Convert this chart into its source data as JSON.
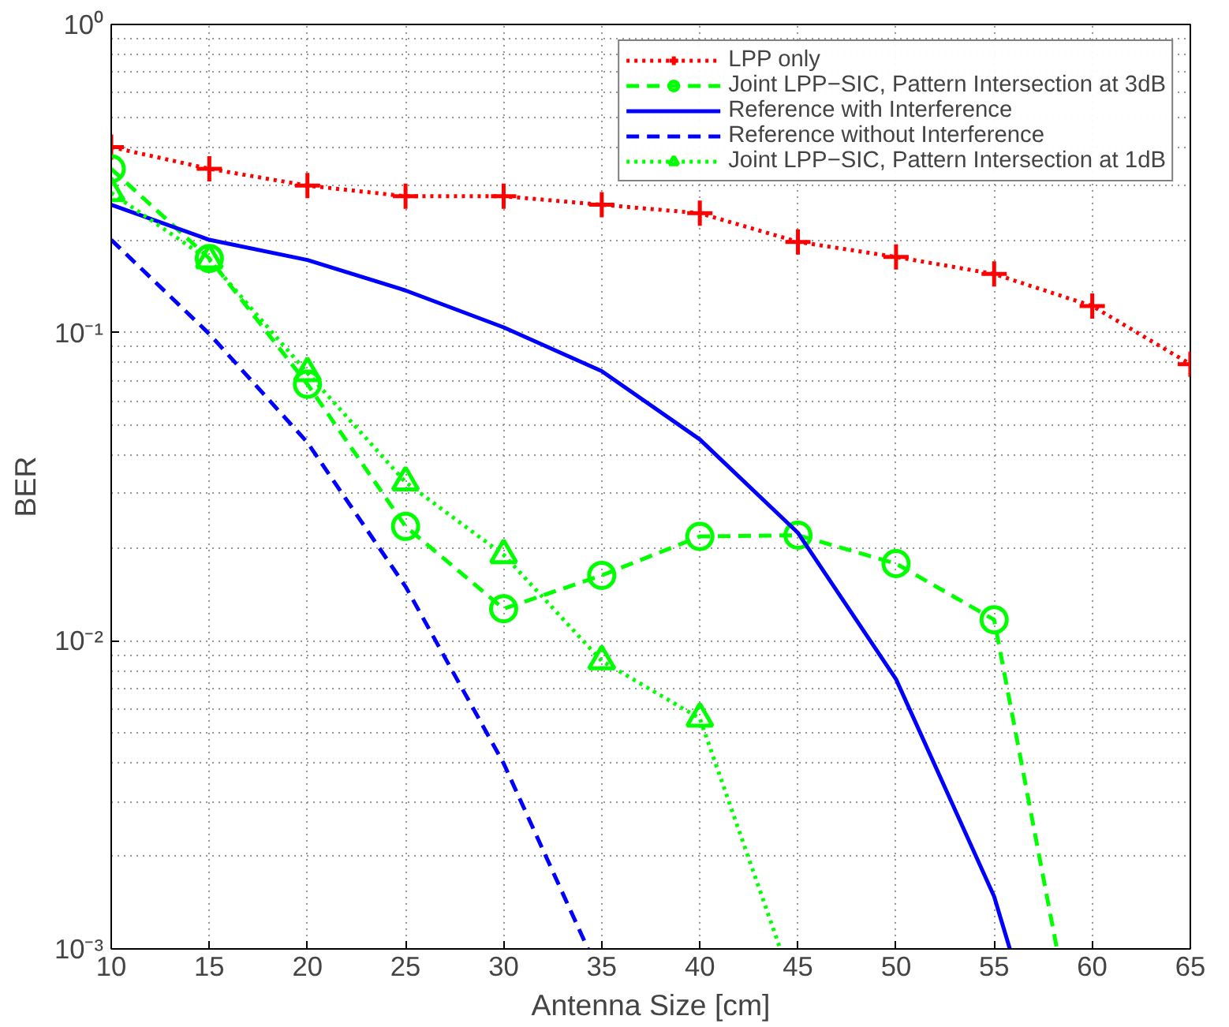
{
  "chart_data": {
    "type": "line",
    "xlabel": "Antenna Size [cm]",
    "ylabel": "BER",
    "log": "y",
    "grid": true,
    "legend": "top right",
    "xlim": [
      10,
      65
    ],
    "xticks": [
      10,
      15,
      20,
      25,
      30,
      35,
      40,
      45,
      50,
      55,
      60,
      65
    ],
    "ylim": [
      0.001,
      1
    ],
    "yticks": [
      {
        "value": 0.001,
        "label": "10⁻³"
      },
      {
        "value": 0.01,
        "label": "10⁻²"
      },
      {
        "value": 0.1,
        "label": "10⁻¹"
      },
      {
        "value": 1,
        "label": "10⁰"
      }
    ],
    "series": [
      {
        "name": "LPP only",
        "color": "#ff0000",
        "marker": "cross",
        "line_style": "dotted",
        "x": [
          10,
          15,
          20,
          25,
          30,
          35,
          40,
          45,
          50,
          55,
          60,
          65
        ],
        "values": [
          0.4,
          0.34,
          0.3,
          0.277,
          0.277,
          0.26,
          0.244,
          0.197,
          0.176,
          0.155,
          0.122,
          0.079
        ]
      },
      {
        "name": "Joint LPP−SIC, Pattern Intersection at 3dB",
        "color": "#00ff00",
        "marker": "circle",
        "line_style": "dashed",
        "x": [
          10,
          15,
          20,
          25,
          30,
          35,
          40,
          45,
          50,
          55,
          58.2
        ],
        "values": [
          0.34,
          0.174,
          0.068,
          0.0235,
          0.0127,
          0.0163,
          0.0218,
          0.022,
          0.0178,
          0.0117,
          0.001
        ]
      },
      {
        "name": "Reference with Interference",
        "color": "#0000ff",
        "marker": "none",
        "line_style": "solid",
        "x": [
          10,
          15,
          20,
          25,
          30,
          35,
          40,
          45,
          50,
          55,
          55.8
        ],
        "values": [
          0.26,
          0.2,
          0.172,
          0.137,
          0.104,
          0.075,
          0.045,
          0.0224,
          0.0075,
          0.00148,
          0.001
        ]
      },
      {
        "name": "Reference without Interference",
        "color": "#0000ff",
        "marker": "none",
        "line_style": "dashed",
        "x": [
          10,
          15,
          20,
          25,
          30,
          34.3
        ],
        "values": [
          0.2,
          0.099,
          0.044,
          0.015,
          0.004,
          0.001
        ]
      },
      {
        "name": "Joint LPP−SIC, Pattern Intersection at 1dB",
        "color": "#00ff00",
        "marker": "triangle",
        "line_style": "dotted",
        "x": [
          10,
          15,
          20,
          25,
          30,
          35,
          40,
          44.1
        ],
        "values": [
          0.284,
          0.172,
          0.074,
          0.0327,
          0.019,
          0.0086,
          0.0056,
          0.001
        ]
      }
    ]
  }
}
